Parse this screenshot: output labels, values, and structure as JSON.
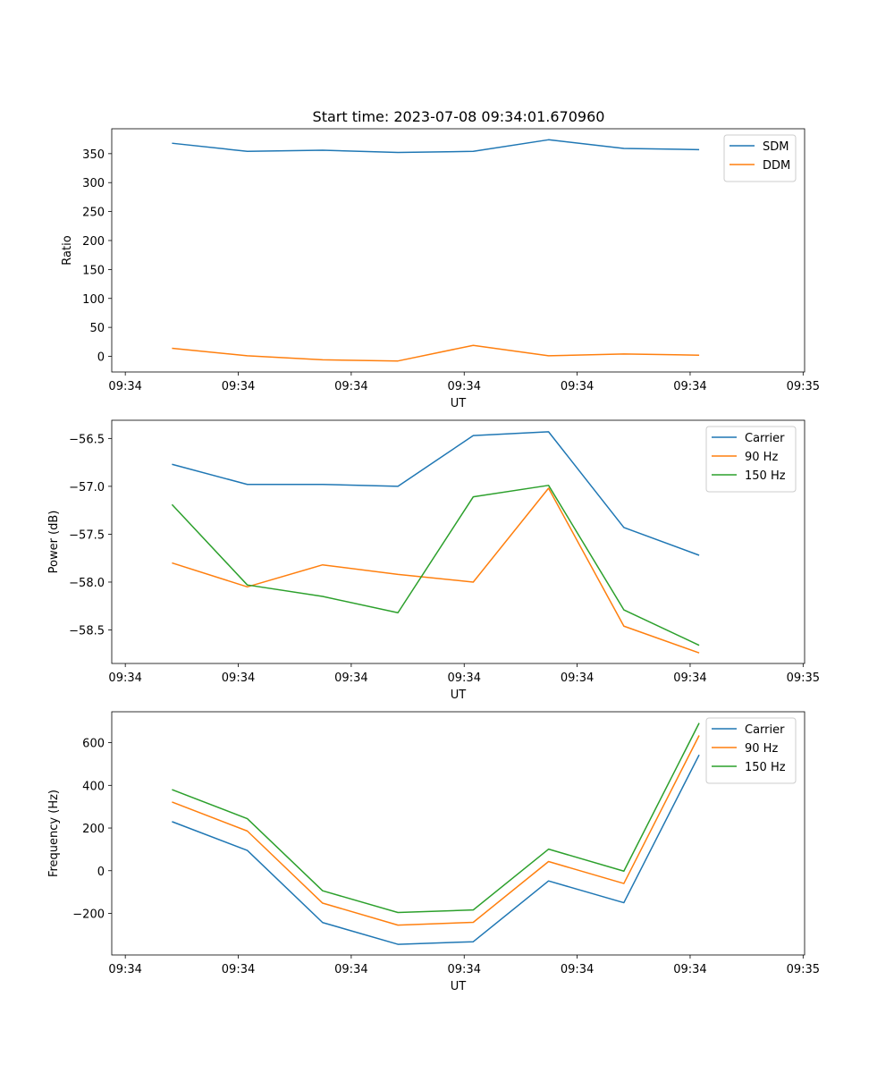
{
  "figure_title": "Start time: 2023-07-08 09:34:01.670960",
  "colors": {
    "blue": "#1f77b4",
    "orange": "#ff7f0e",
    "green": "#2ca02c"
  },
  "chart_data": [
    {
      "type": "line",
      "title": "Start time: 2023-07-08 09:34:01.670960",
      "xlabel": "UT",
      "ylabel": "Ratio",
      "x": [
        1,
        2,
        3,
        4,
        5,
        6,
        7,
        8
      ],
      "xlim": [
        0.2,
        9.4
      ],
      "ylim": [
        -27,
        393
      ],
      "xticks": [
        0.38,
        1.88,
        3.38,
        4.88,
        6.38,
        7.88,
        9.38
      ],
      "xtick_labels": [
        "09:34",
        "09:34",
        "09:34",
        "09:34",
        "09:34",
        "09:34",
        "09:35"
      ],
      "yticks": [
        0,
        50,
        100,
        150,
        200,
        250,
        300,
        350
      ],
      "ytick_labels": [
        "0",
        "50",
        "100",
        "150",
        "200",
        "250",
        "300",
        "350"
      ],
      "legend": "top-right",
      "series": [
        {
          "name": "SDM",
          "color": "#1f77b4",
          "values": [
            368,
            354,
            356,
            352,
            354,
            374,
            359,
            357
          ]
        },
        {
          "name": "DDM",
          "color": "#ff7f0e",
          "values": [
            14,
            1,
            -6,
            -8,
            19,
            1,
            4,
            2
          ]
        }
      ]
    },
    {
      "type": "line",
      "title": "",
      "xlabel": "UT",
      "ylabel": "Power (dB)",
      "x": [
        1,
        2,
        3,
        4,
        5,
        6,
        7,
        8
      ],
      "xlim": [
        0.2,
        9.4
      ],
      "ylim": [
        -58.85,
        -56.31
      ],
      "xticks": [
        0.38,
        1.88,
        3.38,
        4.88,
        6.38,
        7.88,
        9.38
      ],
      "xtick_labels": [
        "09:34",
        "09:34",
        "09:34",
        "09:34",
        "09:34",
        "09:34",
        "09:35"
      ],
      "yticks": [
        -58.5,
        -58.0,
        -57.5,
        -57.0,
        -56.5
      ],
      "ytick_labels": [
        "−58.5",
        "−58.0",
        "−57.5",
        "−57.0",
        "−56.5"
      ],
      "legend": "top-right",
      "series": [
        {
          "name": "Carrier",
          "color": "#1f77b4",
          "values": [
            -56.77,
            -56.98,
            -56.98,
            -57.0,
            -56.47,
            -56.43,
            -57.43,
            -57.72
          ]
        },
        {
          "name": "90 Hz",
          "color": "#ff7f0e",
          "values": [
            -57.8,
            -58.05,
            -57.82,
            -57.92,
            -58.0,
            -57.02,
            -58.46,
            -58.74
          ]
        },
        {
          "name": "150 Hz",
          "color": "#2ca02c",
          "values": [
            -57.19,
            -58.03,
            -58.15,
            -58.32,
            -57.11,
            -56.99,
            -58.29,
            -58.66
          ]
        }
      ]
    },
    {
      "type": "line",
      "title": "",
      "xlabel": "UT",
      "ylabel": "Frequency (Hz)",
      "x": [
        1,
        2,
        3,
        4,
        5,
        6,
        7,
        8
      ],
      "xlim": [
        0.2,
        9.4
      ],
      "ylim": [
        -395,
        745
      ],
      "xticks": [
        0.38,
        1.88,
        3.38,
        4.88,
        6.38,
        7.88,
        9.38
      ],
      "xtick_labels": [
        "09:34",
        "09:34",
        "09:34",
        "09:34",
        "09:34",
        "09:34",
        "09:35"
      ],
      "yticks": [
        -200,
        0,
        200,
        400,
        600
      ],
      "ytick_labels": [
        "−200",
        "0",
        "200",
        "400",
        "600"
      ],
      "legend": "top-right",
      "series": [
        {
          "name": "Carrier",
          "color": "#1f77b4",
          "values": [
            230,
            95,
            -243,
            -345,
            -333,
            -48,
            -150,
            543
          ]
        },
        {
          "name": "90 Hz",
          "color": "#ff7f0e",
          "values": [
            322,
            186,
            -152,
            -255,
            -242,
            43,
            -60,
            634
          ]
        },
        {
          "name": "150 Hz",
          "color": "#2ca02c",
          "values": [
            380,
            244,
            -94,
            -196,
            -184,
            101,
            -2,
            692
          ]
        }
      ]
    }
  ]
}
